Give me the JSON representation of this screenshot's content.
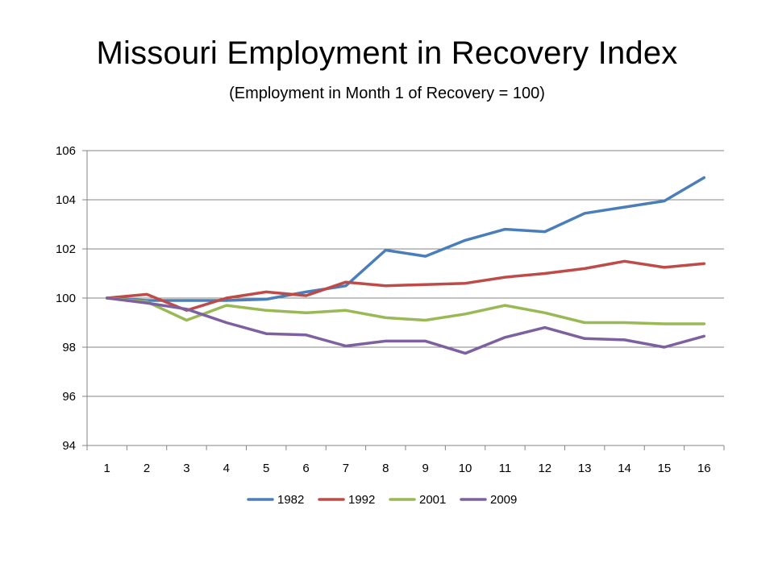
{
  "chart_data": {
    "type": "line",
    "title": "Missouri Employment in Recovery Index",
    "subtitle": "(Employment in Month 1 of Recovery = 100)",
    "xlabel": "",
    "ylabel": "",
    "categories": [
      "1",
      "2",
      "3",
      "4",
      "5",
      "6",
      "7",
      "8",
      "9",
      "10",
      "11",
      "12",
      "13",
      "14",
      "15",
      "16"
    ],
    "ylim": [
      94,
      106
    ],
    "yticks": [
      94,
      96,
      98,
      100,
      102,
      104,
      106
    ],
    "grid": true,
    "legend_position": "bottom",
    "series": [
      {
        "name": "1982",
        "color": "#4a7ebb",
        "values": [
          100.0,
          99.9,
          99.9,
          99.9,
          99.95,
          100.25,
          100.5,
          101.95,
          101.7,
          102.35,
          102.8,
          102.7,
          103.45,
          103.7,
          103.95,
          104.9
        ]
      },
      {
        "name": "1992",
        "color": "#be4b48",
        "values": [
          100.0,
          100.15,
          99.5,
          100.0,
          100.25,
          100.1,
          100.65,
          100.5,
          100.55,
          100.6,
          100.85,
          101.0,
          101.2,
          101.5,
          101.25,
          101.4
        ]
      },
      {
        "name": "2001",
        "color": "#98b954",
        "values": [
          100.0,
          99.85,
          99.1,
          99.7,
          99.5,
          99.4,
          99.5,
          99.2,
          99.1,
          99.35,
          99.7,
          99.4,
          99.0,
          99.0,
          98.95,
          98.95
        ]
      },
      {
        "name": "2009",
        "color": "#7d60a0",
        "values": [
          100.0,
          99.8,
          99.55,
          99.0,
          98.55,
          98.5,
          98.05,
          98.25,
          98.25,
          97.75,
          98.4,
          98.8,
          98.35,
          98.3,
          98.0,
          98.45
        ]
      }
    ]
  }
}
